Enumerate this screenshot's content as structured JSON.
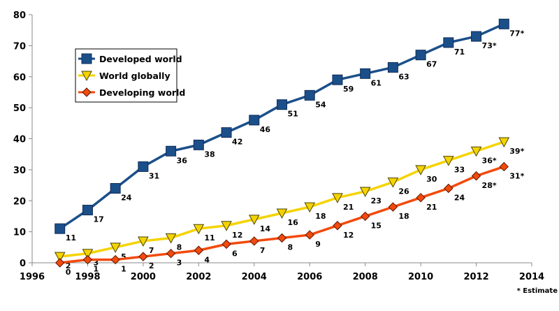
{
  "chart_data": {
    "type": "line",
    "xlim": [
      1996,
      2014
    ],
    "ylim": [
      0,
      80
    ],
    "x_ticks": [
      1996,
      1998,
      2000,
      2002,
      2004,
      2006,
      2008,
      2010,
      2012,
      2014
    ],
    "y_ticks": [
      0,
      10,
      20,
      30,
      40,
      50,
      60,
      70,
      80
    ],
    "grid": false,
    "legend_position": "top-left",
    "note": "* Estimate",
    "x": [
      1997,
      1998,
      1999,
      2000,
      2001,
      2002,
      2003,
      2004,
      2005,
      2006,
      2007,
      2008,
      2009,
      2010,
      2011,
      2012,
      2013
    ],
    "series": [
      {
        "name": "Developed world",
        "color": "#1b4f8a",
        "marker": "square",
        "values": [
          11,
          17,
          24,
          31,
          36,
          38,
          42,
          46,
          51,
          54,
          59,
          61,
          63,
          67,
          71,
          73,
          77
        ],
        "labels": [
          "11",
          "17",
          "24",
          "31",
          "36",
          "38",
          "42",
          "46",
          "51",
          "54",
          "59",
          "61",
          "63",
          "67",
          "71",
          "73*",
          "77*"
        ]
      },
      {
        "name": "World globally",
        "color": "#f5d300",
        "marker": "triangle-down",
        "values": [
          2,
          3,
          5,
          7,
          8,
          11,
          12,
          14,
          16,
          18,
          21,
          23,
          26,
          30,
          33,
          36,
          39
        ],
        "labels": [
          "2",
          "3",
          "5",
          "7",
          "8",
          "11",
          "12",
          "14",
          "16",
          "18",
          "21",
          "23",
          "26",
          "30",
          "33",
          "36*",
          "39*"
        ]
      },
      {
        "name": "Developing world",
        "color": "#f24a0c",
        "marker": "diamond",
        "values": [
          0,
          1,
          1,
          2,
          3,
          4,
          6,
          7,
          8,
          9,
          12,
          15,
          18,
          21,
          24,
          28,
          31
        ],
        "labels": [
          "0",
          "1",
          "1",
          "2",
          "3",
          "4",
          "6",
          "7",
          "8",
          "9",
          "12",
          "15",
          "18",
          "21",
          "24",
          "28*",
          "31*"
        ]
      }
    ]
  }
}
